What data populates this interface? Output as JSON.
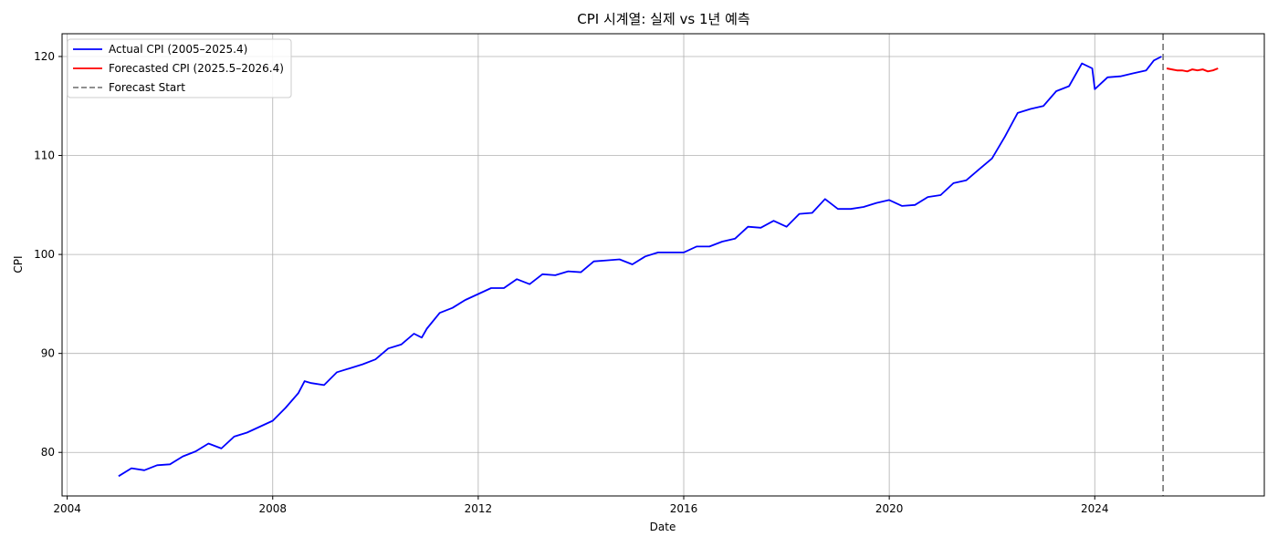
{
  "chart_data": {
    "type": "line",
    "title": "CPI 시계열: 실제 vs 1년 예측",
    "xlabel": "Date",
    "ylabel": "CPI",
    "xlim": [
      2003.9,
      2027.3
    ],
    "ylim": [
      75.6,
      122.3
    ],
    "x_ticks": [
      2004,
      2008,
      2012,
      2016,
      2020,
      2024
    ],
    "y_ticks": [
      80,
      90,
      100,
      110,
      120
    ],
    "grid": true,
    "legend_position": "top-left",
    "forecast_start": 2025.33,
    "series": [
      {
        "name": "Actual CPI (2005–2025.4)",
        "color": "#0000ff",
        "style": "solid",
        "points": [
          [
            2005.0,
            77.6
          ],
          [
            2005.25,
            78.4
          ],
          [
            2005.5,
            78.2
          ],
          [
            2005.75,
            78.7
          ],
          [
            2006.0,
            78.8
          ],
          [
            2006.25,
            79.6
          ],
          [
            2006.5,
            80.1
          ],
          [
            2006.75,
            80.9
          ],
          [
            2007.0,
            80.4
          ],
          [
            2007.25,
            81.6
          ],
          [
            2007.5,
            82.0
          ],
          [
            2007.75,
            82.6
          ],
          [
            2008.0,
            83.2
          ],
          [
            2008.25,
            84.5
          ],
          [
            2008.5,
            86.0
          ],
          [
            2008.62,
            87.2
          ],
          [
            2008.75,
            87.0
          ],
          [
            2009.0,
            86.8
          ],
          [
            2009.25,
            88.1
          ],
          [
            2009.5,
            88.5
          ],
          [
            2009.75,
            88.9
          ],
          [
            2010.0,
            89.4
          ],
          [
            2010.25,
            90.5
          ],
          [
            2010.5,
            90.9
          ],
          [
            2010.75,
            92.0
          ],
          [
            2010.9,
            91.6
          ],
          [
            2011.0,
            92.5
          ],
          [
            2011.25,
            94.1
          ],
          [
            2011.5,
            94.6
          ],
          [
            2011.75,
            95.4
          ],
          [
            2012.0,
            96.0
          ],
          [
            2012.25,
            96.6
          ],
          [
            2012.5,
            96.6
          ],
          [
            2012.75,
            97.5
          ],
          [
            2013.0,
            97.0
          ],
          [
            2013.25,
            98.0
          ],
          [
            2013.5,
            97.9
          ],
          [
            2013.75,
            98.3
          ],
          [
            2014.0,
            98.2
          ],
          [
            2014.25,
            99.3
          ],
          [
            2014.5,
            99.4
          ],
          [
            2014.75,
            99.5
          ],
          [
            2015.0,
            99.0
          ],
          [
            2015.25,
            99.8
          ],
          [
            2015.5,
            100.2
          ],
          [
            2015.75,
            100.2
          ],
          [
            2016.0,
            100.2
          ],
          [
            2016.25,
            100.8
          ],
          [
            2016.5,
            100.8
          ],
          [
            2016.75,
            101.3
          ],
          [
            2017.0,
            101.6
          ],
          [
            2017.25,
            102.8
          ],
          [
            2017.5,
            102.7
          ],
          [
            2017.75,
            103.4
          ],
          [
            2018.0,
            102.8
          ],
          [
            2018.25,
            104.1
          ],
          [
            2018.5,
            104.2
          ],
          [
            2018.75,
            105.6
          ],
          [
            2019.0,
            104.6
          ],
          [
            2019.25,
            104.6
          ],
          [
            2019.5,
            104.8
          ],
          [
            2019.75,
            105.2
          ],
          [
            2020.0,
            105.5
          ],
          [
            2020.25,
            104.9
          ],
          [
            2020.5,
            105.0
          ],
          [
            2020.75,
            105.8
          ],
          [
            2021.0,
            106.0
          ],
          [
            2021.25,
            107.2
          ],
          [
            2021.5,
            107.5
          ],
          [
            2021.75,
            108.6
          ],
          [
            2022.0,
            109.7
          ],
          [
            2022.25,
            111.9
          ],
          [
            2022.5,
            114.3
          ],
          [
            2022.75,
            114.7
          ],
          [
            2023.0,
            115.0
          ],
          [
            2023.25,
            116.5
          ],
          [
            2023.5,
            117.0
          ],
          [
            2023.75,
            119.3
          ],
          [
            2023.95,
            118.8
          ],
          [
            2024.0,
            116.7
          ],
          [
            2024.25,
            117.9
          ],
          [
            2024.5,
            118.0
          ],
          [
            2024.75,
            118.3
          ],
          [
            2025.0,
            118.6
          ],
          [
            2025.15,
            119.6
          ],
          [
            2025.3,
            120.0
          ]
        ]
      },
      {
        "name": "Forecasted CPI (2025.5–2026.4)",
        "color": "#ff0000",
        "style": "solid",
        "points": [
          [
            2025.4,
            118.8
          ],
          [
            2025.5,
            118.7
          ],
          [
            2025.6,
            118.6
          ],
          [
            2025.7,
            118.6
          ],
          [
            2025.8,
            118.5
          ],
          [
            2025.9,
            118.7
          ],
          [
            2026.0,
            118.6
          ],
          [
            2026.1,
            118.7
          ],
          [
            2026.2,
            118.5
          ],
          [
            2026.3,
            118.6
          ],
          [
            2026.4,
            118.8
          ]
        ]
      },
      {
        "name": "Forecast Start",
        "color": "#808080",
        "style": "dashed"
      }
    ]
  }
}
